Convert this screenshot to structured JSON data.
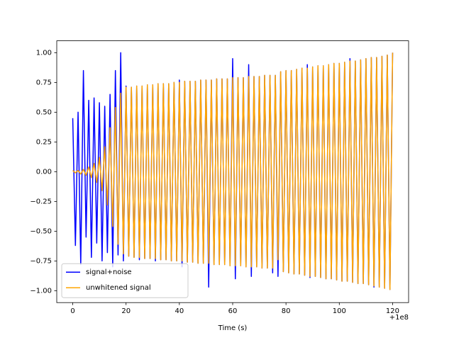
{
  "chart_data": {
    "type": "line",
    "xlabel": "Time (s)",
    "x_offset_label": "+1e8",
    "x": [
      0,
      1,
      2,
      3,
      4,
      5,
      6,
      7,
      8,
      9,
      10,
      11,
      12,
      13,
      14,
      15,
      16,
      17,
      18,
      19,
      20,
      21,
      22,
      23,
      24,
      25,
      26,
      27,
      28,
      29,
      30,
      31,
      32,
      33,
      34,
      35,
      36,
      37,
      38,
      39,
      40,
      41,
      42,
      43,
      44,
      45,
      46,
      47,
      48,
      49,
      50,
      51,
      52,
      53,
      54,
      55,
      56,
      57,
      58,
      59,
      60,
      61,
      62,
      63,
      64,
      65,
      66,
      67,
      68,
      69,
      70,
      71,
      72,
      73,
      74,
      75,
      76,
      77,
      78,
      79,
      80,
      81,
      82,
      83,
      84,
      85,
      86,
      87,
      88,
      89,
      90,
      91,
      92,
      93,
      94,
      95,
      96,
      97,
      98,
      99,
      100,
      101,
      102,
      103,
      104,
      105,
      106,
      107,
      108,
      109,
      110,
      111,
      112,
      113,
      114,
      115,
      116,
      117,
      118,
      119,
      120
    ],
    "series": [
      {
        "name": "signal+noise",
        "color": "#0000ff",
        "values": [
          0.45,
          -0.62,
          0.5,
          -0.78,
          0.85,
          -0.55,
          0.6,
          -0.72,
          0.62,
          -0.6,
          0.58,
          -0.75,
          0.55,
          -0.68,
          0.65,
          -0.8,
          0.85,
          -0.7,
          1.0,
          -0.75,
          0.72,
          -0.71,
          0.71,
          -0.72,
          0.72,
          -0.74,
          0.72,
          -0.73,
          0.73,
          -0.73,
          0.73,
          -0.75,
          0.74,
          -0.74,
          0.74,
          -0.74,
          0.74,
          -0.75,
          0.75,
          -0.75,
          0.77,
          -0.8,
          0.76,
          -0.76,
          0.76,
          -0.76,
          0.76,
          -0.77,
          0.77,
          -0.77,
          0.77,
          -0.97,
          0.77,
          -0.78,
          0.78,
          -0.78,
          0.78,
          -0.78,
          0.78,
          -0.79,
          0.95,
          -0.9,
          0.79,
          -0.79,
          0.79,
          -0.8,
          0.9,
          -0.88,
          0.8,
          -0.8,
          0.8,
          -0.81,
          0.81,
          -0.81,
          0.81,
          -0.85,
          0.81,
          -0.88,
          0.84,
          -0.84,
          0.85,
          -0.85,
          0.85,
          -0.86,
          0.86,
          -0.86,
          0.87,
          -0.87,
          0.9,
          -0.89,
          0.88,
          -0.88,
          0.89,
          -0.89,
          0.89,
          -0.9,
          0.9,
          -0.9,
          0.91,
          -0.91,
          0.91,
          -0.92,
          0.92,
          -0.92,
          0.95,
          -0.93,
          0.93,
          -0.94,
          0.94,
          -0.94,
          0.95,
          -0.95,
          0.96,
          -0.97,
          0.96,
          -0.97,
          0.97,
          -0.98,
          0.98,
          -0.99,
          1.0
        ]
      },
      {
        "name": "unwhitened signal",
        "color": "#ffa500",
        "values": [
          0.01,
          -0.01,
          0.01,
          -0.02,
          0.02,
          -0.03,
          0.04,
          -0.05,
          0.07,
          -0.09,
          0.12,
          -0.16,
          0.21,
          -0.28,
          0.37,
          -0.46,
          0.54,
          -0.61,
          0.66,
          -0.69,
          0.71,
          -0.71,
          0.71,
          -0.72,
          0.72,
          -0.72,
          0.72,
          -0.73,
          0.73,
          -0.73,
          0.73,
          -0.73,
          0.74,
          -0.74,
          0.74,
          -0.74,
          0.74,
          -0.75,
          0.75,
          -0.75,
          0.75,
          -0.75,
          0.76,
          -0.76,
          0.76,
          -0.76,
          0.76,
          -0.77,
          0.77,
          -0.77,
          0.77,
          -0.77,
          0.77,
          -0.78,
          0.78,
          -0.78,
          0.78,
          -0.78,
          0.78,
          -0.79,
          0.79,
          -0.79,
          0.79,
          -0.79,
          0.79,
          -0.8,
          0.8,
          -0.8,
          0.8,
          -0.8,
          0.8,
          -0.81,
          0.81,
          -0.81,
          0.81,
          -0.81,
          0.81,
          -0.74,
          0.84,
          -0.84,
          0.85,
          -0.85,
          0.85,
          -0.86,
          0.86,
          -0.86,
          0.87,
          -0.87,
          0.87,
          -0.88,
          0.88,
          -0.88,
          0.89,
          -0.89,
          0.89,
          -0.9,
          0.9,
          -0.9,
          0.91,
          -0.91,
          0.91,
          -0.92,
          0.92,
          -0.92,
          0.93,
          -0.93,
          0.93,
          -0.94,
          0.94,
          -0.94,
          0.95,
          -0.95,
          0.96,
          -0.96,
          0.96,
          -0.97,
          0.97,
          -0.98,
          0.98,
          -0.99,
          1.0
        ]
      }
    ],
    "xlim": [
      -6,
      126
    ],
    "xticks": [
      0,
      20,
      40,
      60,
      80,
      100,
      120
    ],
    "ylim": [
      -1.1,
      1.1
    ],
    "yticks": [
      {
        "value": -1,
        "label": "−1.00"
      },
      {
        "value": -0.75,
        "label": "−0.75"
      },
      {
        "value": -0.5,
        "label": "−0.50"
      },
      {
        "value": -0.25,
        "label": "−0.25"
      },
      {
        "value": 0,
        "label": "0.00"
      },
      {
        "value": 0.25,
        "label": "0.25"
      },
      {
        "value": 0.5,
        "label": "0.50"
      },
      {
        "value": 0.75,
        "label": "0.75"
      },
      {
        "value": 1,
        "label": "1.00"
      }
    ],
    "legend": "lower left"
  }
}
